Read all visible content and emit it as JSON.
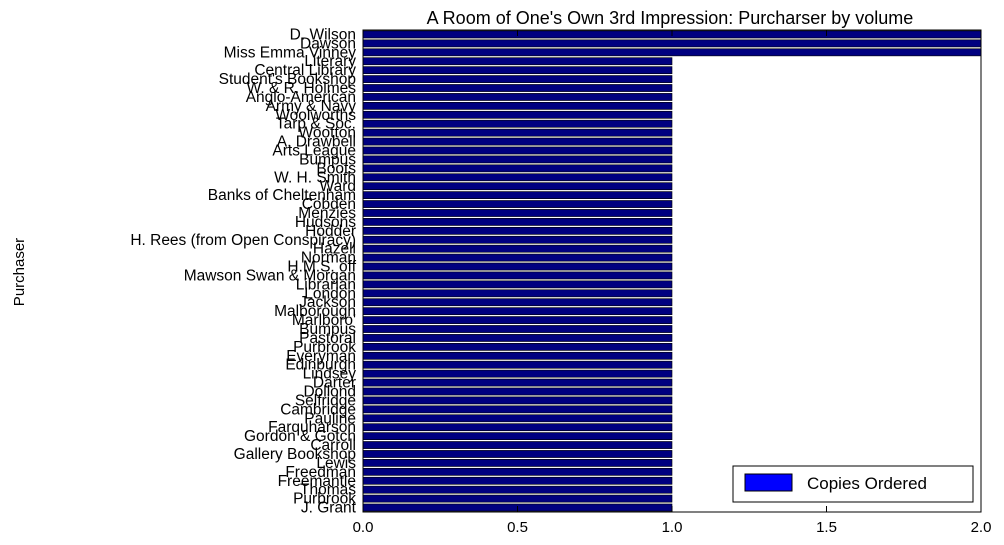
{
  "chart_data": {
    "type": "bar",
    "orientation": "horizontal",
    "title": "A Room of One's Own 3rd Impression: Purcharser by volume",
    "xlabel": "",
    "ylabel": "Purchaser",
    "xlim": [
      0,
      2.0
    ],
    "xticks": [
      "0.0",
      "0.5",
      "1.0",
      "1.5",
      "2.0"
    ],
    "grid": false,
    "legend_position": "bottom-right",
    "series": [
      {
        "name": "Copies Ordered",
        "color": "#0000ff",
        "edge_color": "#000000"
      }
    ],
    "bar_color": "#000080",
    "categories": [
      "J. Grant",
      "Purbrook",
      "Thomas",
      "Freemantle",
      "Freedman",
      "Lewis",
      "Gallery Bookshop",
      "Carroll",
      "Gordon & Gotch",
      "Farquharson",
      "Pauline",
      "Cambridge",
      "Selfridge",
      "Dollond",
      "Darter",
      "Lindsey",
      "Edinburgh",
      "Everyman",
      "Purbrook",
      "Pastoral",
      "Bumpus",
      "Marlboro'",
      "Malborough",
      "Jackson",
      "London",
      "Librarian",
      "Mawson Swan & Morgan",
      "H.M.S. off",
      "Norman",
      "Hazell",
      "H. Rees (from Open Conspiracy)",
      "Hodder",
      "Hudsons",
      "Menzies",
      "Cobden",
      "Banks of Cheltenham",
      "Ward",
      "W. H. Smith",
      "Boots",
      "Bumpus",
      "Arts League",
      "A. Drawbell",
      "Wootton",
      "Tarp & Soc.",
      "Woolworths",
      "Army & Navy",
      "Anglo-American",
      "W. & R. Holmes",
      "Student's Bookshop",
      "Central Library",
      "Literary",
      "Miss Emma Vinney",
      "Dawson",
      "D. Wilson"
    ],
    "values": [
      1,
      1,
      1,
      1,
      1,
      1,
      1,
      1,
      1,
      1,
      1,
      1,
      1,
      1,
      1,
      1,
      1,
      1,
      1,
      1,
      1,
      1,
      1,
      1,
      1,
      1,
      1,
      1,
      1,
      1,
      1,
      1,
      1,
      1,
      1,
      1,
      1,
      1,
      1,
      1,
      1,
      1,
      1,
      1,
      1,
      1,
      1,
      1,
      1,
      1,
      1,
      2,
      2,
      2
    ]
  }
}
